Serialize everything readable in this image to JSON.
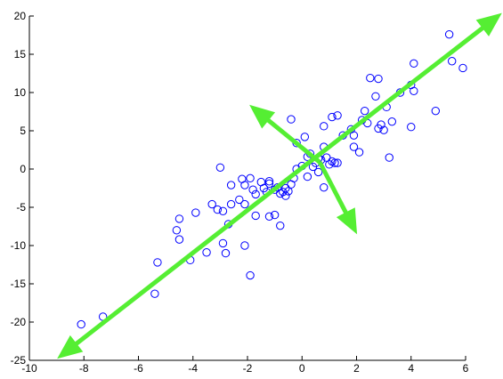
{
  "chart_data": {
    "type": "scatter",
    "title": "",
    "xlabel": "",
    "ylabel": "",
    "xlim": [
      -10,
      6
    ],
    "ylim": [
      -25,
      20
    ],
    "grid": false,
    "x_ticks": [
      -10,
      -8,
      -6,
      -4,
      -2,
      0,
      2,
      4,
      6
    ],
    "y_ticks": [
      -25,
      -20,
      -15,
      -10,
      -5,
      0,
      5,
      10,
      15,
      20
    ],
    "x_tick_labels": [
      "-10",
      "-8",
      "-6",
      "-4",
      "-2",
      "0",
      "2",
      "4",
      "6"
    ],
    "y_tick_labels": [
      "-25",
      "-20",
      "-15",
      "-10",
      "-5",
      "0",
      "5",
      "10",
      "15",
      "20"
    ],
    "marker_color": "#0000ff",
    "arrow_color": "#55ee33",
    "series": [
      {
        "points": [
          [
            -8.1,
            -20.3
          ],
          [
            -7.3,
            -19.3
          ],
          [
            -5.4,
            -16.3
          ],
          [
            -5.3,
            -12.2
          ],
          [
            -4.1,
            -11.9
          ],
          [
            -3.5,
            -10.9
          ],
          [
            -2.8,
            -11.0
          ],
          [
            -2.9,
            -9.7
          ],
          [
            -2.1,
            -10.0
          ],
          [
            -1.9,
            -13.9
          ],
          [
            -4.5,
            -9.2
          ],
          [
            -4.6,
            -8.0
          ],
          [
            -4.5,
            -6.5
          ],
          [
            -3.9,
            -5.7
          ],
          [
            -3.3,
            -4.6
          ],
          [
            -3.1,
            -5.3
          ],
          [
            -2.9,
            -5.5
          ],
          [
            -2.6,
            -4.6
          ],
          [
            -2.7,
            -7.2
          ],
          [
            -3.0,
            0.2
          ],
          [
            -2.6,
            -2.1
          ],
          [
            -2.2,
            -1.3
          ],
          [
            -2.3,
            -4.0
          ],
          [
            -2.1,
            -4.6
          ],
          [
            -2.1,
            -2.1
          ],
          [
            -1.9,
            -1.2
          ],
          [
            -1.8,
            -2.7
          ],
          [
            -1.7,
            -3.3
          ],
          [
            -1.5,
            -1.7
          ],
          [
            -1.4,
            -2.5
          ],
          [
            -1.3,
            -3.0
          ],
          [
            -1.2,
            -1.6
          ],
          [
            -1.2,
            -6.2
          ],
          [
            -1.7,
            -6.1
          ],
          [
            -1.0,
            -6.0
          ],
          [
            -0.8,
            -7.4
          ],
          [
            -1.0,
            -2.7
          ],
          [
            -0.8,
            -3.2
          ],
          [
            -0.6,
            -2.5
          ],
          [
            -0.5,
            -2.9
          ],
          [
            -0.6,
            -3.5
          ],
          [
            -0.3,
            -1.2
          ],
          [
            -0.2,
            0.0
          ],
          [
            0.0,
            0.4
          ],
          [
            0.2,
            -1.0
          ],
          [
            0.2,
            1.6
          ],
          [
            0.3,
            2.0
          ],
          [
            0.5,
            0.8
          ],
          [
            0.6,
            -0.4
          ],
          [
            0.7,
            1.2
          ],
          [
            0.8,
            2.9
          ],
          [
            0.9,
            1.5
          ],
          [
            1.0,
            0.6
          ],
          [
            0.8,
            -2.4
          ],
          [
            1.1,
            1.0
          ],
          [
            1.2,
            0.8
          ],
          [
            1.3,
            0.8
          ],
          [
            1.5,
            4.4
          ],
          [
            1.8,
            5.2
          ],
          [
            1.9,
            4.4
          ],
          [
            1.9,
            2.9
          ],
          [
            2.1,
            2.2
          ],
          [
            2.2,
            6.4
          ],
          [
            2.3,
            7.6
          ],
          [
            2.4,
            6.0
          ],
          [
            2.5,
            11.9
          ],
          [
            2.8,
            11.8
          ],
          [
            2.7,
            9.5
          ],
          [
            2.8,
            5.3
          ],
          [
            2.9,
            5.8
          ],
          [
            3.0,
            5.1
          ],
          [
            3.1,
            8.1
          ],
          [
            3.3,
            6.2
          ],
          [
            3.2,
            1.5
          ],
          [
            3.6,
            10.0
          ],
          [
            4.0,
            11.0
          ],
          [
            4.1,
            13.8
          ],
          [
            4.1,
            10.2
          ],
          [
            4.0,
            5.5
          ],
          [
            4.9,
            7.6
          ],
          [
            5.4,
            17.6
          ],
          [
            5.5,
            14.1
          ],
          [
            5.9,
            13.2
          ],
          [
            -0.4,
            6.5
          ],
          [
            -0.2,
            3.4
          ],
          [
            0.1,
            4.2
          ],
          [
            0.8,
            5.6
          ],
          [
            1.1,
            6.8
          ],
          [
            1.3,
            7.0
          ],
          [
            -1.2,
            -1.9
          ],
          [
            -0.9,
            -2.4
          ],
          [
            -0.7,
            -3.0
          ],
          [
            -0.4,
            -2.0
          ],
          [
            0.4,
            0.3
          ],
          [
            0.6,
            1.4
          ]
        ]
      }
    ],
    "arrows": [
      {
        "from": [
          -1.05,
          -2.75
        ],
        "to": [
          -8.95,
          -24.7
        ],
        "note": "principal axis 1 (toward lower left)"
      },
      {
        "from": [
          -1.05,
          -2.75
        ],
        "to": [
          7.3,
          20.3
        ],
        "note": "principal axis 1 (toward upper right)"
      },
      {
        "from": [
          0.65,
          0.9
        ],
        "to": [
          -1.9,
          8.3
        ],
        "note": "principal axis 2 (toward upper left)"
      },
      {
        "from": [
          0.65,
          0.9
        ],
        "to": [
          2.0,
          -8.4
        ],
        "note": "principal axis 2 (toward lower right)"
      }
    ]
  }
}
